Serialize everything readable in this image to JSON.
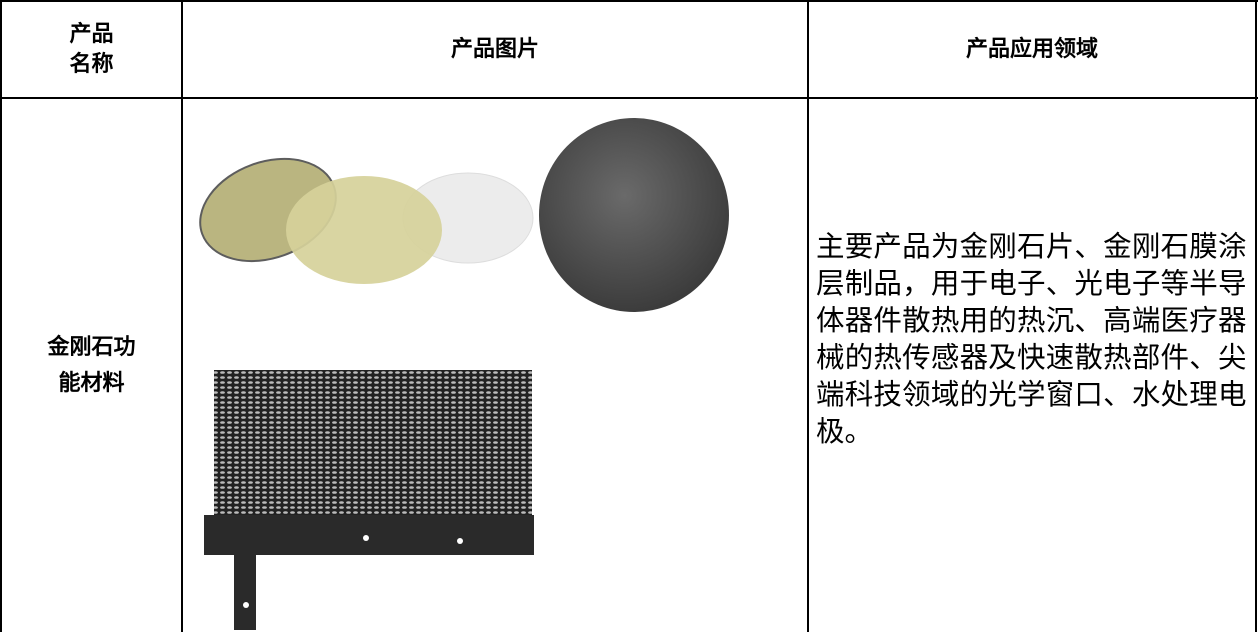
{
  "table": {
    "header": [
      {
        "lines": [
          "产品",
          "名称"
        ]
      },
      "产品图片",
      "产品应用领域"
    ],
    "rows": [
      {
        "name": {
          "lines": [
            "金刚石功",
            "能材料"
          ]
        },
        "application": "主要产品为金刚石片、金刚石膜涂层制品，用于电子、光电子等半导体器件散热用的热沉、高端医疗器械的热传感器及快速散热部件、尖端科技领域的光学窗口、水处理电极。"
      }
    ]
  }
}
